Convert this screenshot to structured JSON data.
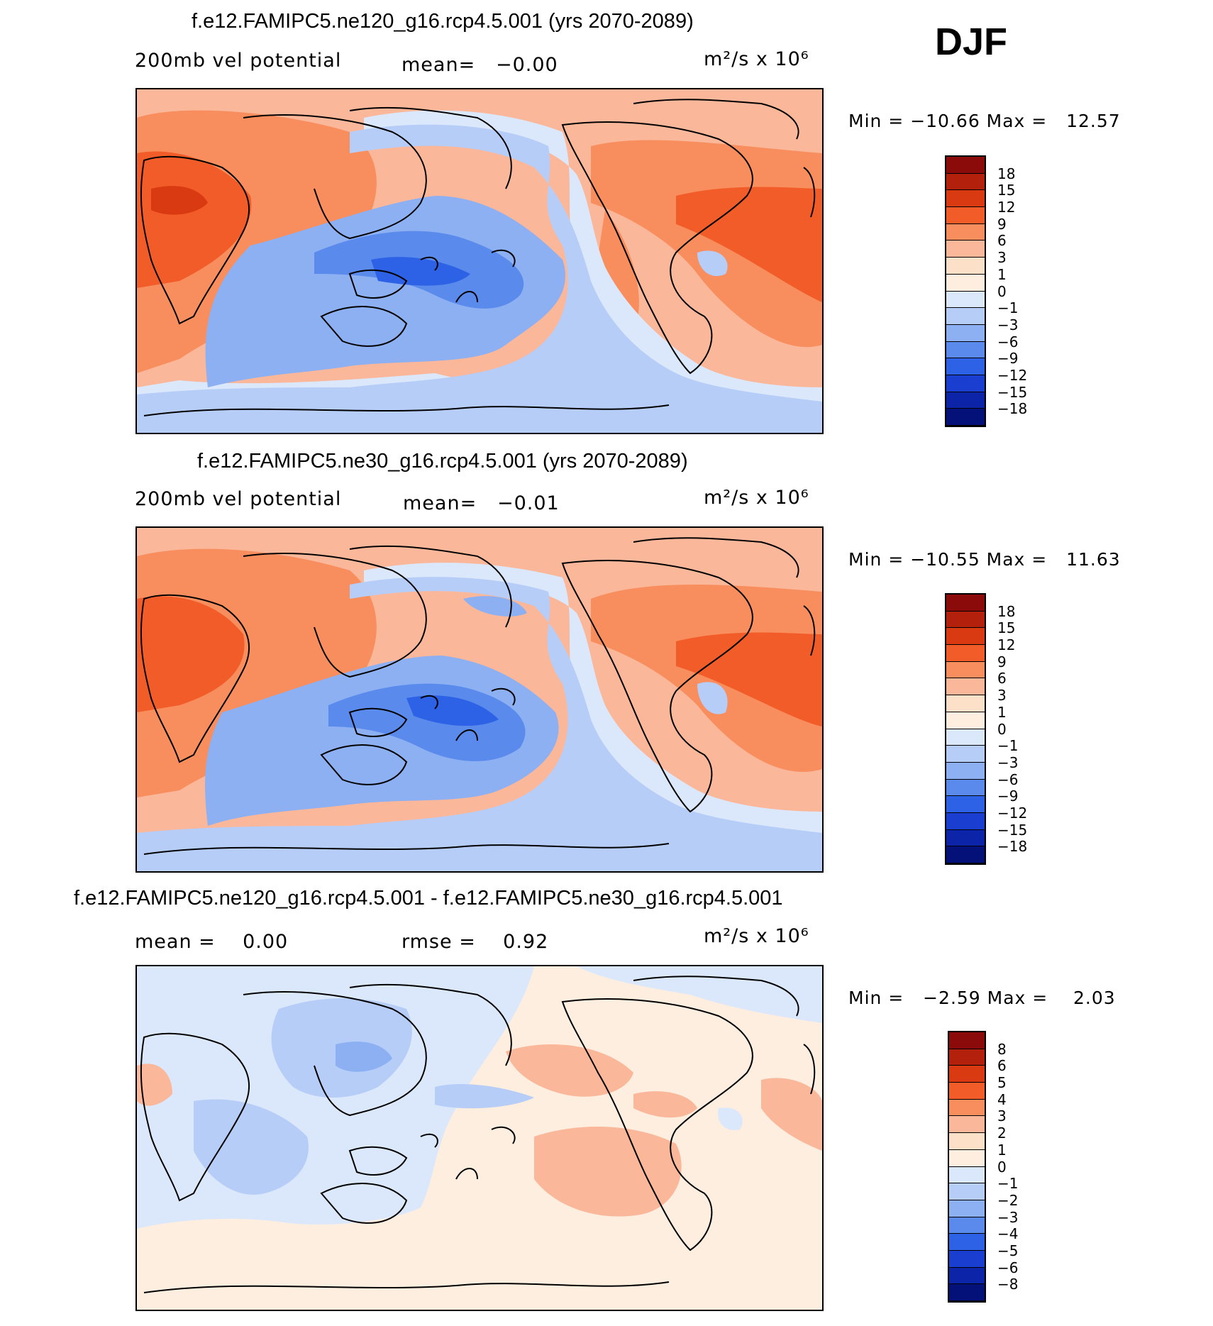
{
  "season": "DJF",
  "panels": [
    {
      "title": "f.e12.FAMIPC5.ne120_g16.rcp4.5.001 (yrs 2070-2089)",
      "left_text": "200mb vel potential",
      "mean_text": "mean=   −0.00",
      "units_text": "m²/s x 10⁶",
      "minmax_text": "Min = −10.66 Max =   12.57",
      "colorbar_labels": [
        "18",
        "15",
        "12",
        "9",
        "6",
        "3",
        "1",
        "0",
        "−1",
        "−3",
        "−6",
        "−9",
        "−12",
        "−15",
        "−18"
      ],
      "colors": [
        "#8b0a0a",
        "#b3200c",
        "#d93a12",
        "#f25c28",
        "#f88e5e",
        "#fbb79a",
        "#fde0c8",
        "#fdeedf",
        "#dbe8fb",
        "#b6cdf7",
        "#8cb0f2",
        "#5a8bec",
        "#2d62e6",
        "#1a3fd0",
        "#0c24a8",
        "#041178"
      ]
    },
    {
      "title": "f.e12.FAMIPC5.ne30_g16.rcp4.5.001 (yrs 2070-2089)",
      "left_text": "200mb vel potential",
      "mean_text": "mean=   −0.01",
      "units_text": "m²/s x 10⁶",
      "minmax_text": "Min = −10.55 Max =   11.63",
      "colorbar_labels": [
        "18",
        "15",
        "12",
        "9",
        "6",
        "3",
        "1",
        "0",
        "−1",
        "−3",
        "−6",
        "−9",
        "−12",
        "−15",
        "−18"
      ],
      "colors": [
        "#8b0a0a",
        "#b3200c",
        "#d93a12",
        "#f25c28",
        "#f88e5e",
        "#fbb79a",
        "#fde0c8",
        "#fdeedf",
        "#dbe8fb",
        "#b6cdf7",
        "#8cb0f2",
        "#5a8bec",
        "#2d62e6",
        "#1a3fd0",
        "#0c24a8",
        "#041178"
      ]
    },
    {
      "title": "f.e12.FAMIPC5.ne120_g16.rcp4.5.001 - f.e12.FAMIPC5.ne30_g16.rcp4.5.001",
      "left_text": "mean =    0.00",
      "mean_text": "rmse =    0.92",
      "units_text": "m²/s x 10⁶",
      "minmax_text": "Min =   −2.59 Max =    2.03",
      "colorbar_labels": [
        "8",
        "6",
        "5",
        "4",
        "3",
        "2",
        "1",
        "0",
        "−1",
        "−2",
        "−3",
        "−4",
        "−5",
        "−6",
        "−8"
      ],
      "colors": [
        "#8b0a0a",
        "#b3200c",
        "#d93a12",
        "#f25c28",
        "#f88e5e",
        "#fbb79a",
        "#fde0c8",
        "#fdeedf",
        "#dbe8fb",
        "#b6cdf7",
        "#8cb0f2",
        "#5a8bec",
        "#2d62e6",
        "#1a3fd0",
        "#0c24a8",
        "#041178"
      ]
    }
  ]
}
